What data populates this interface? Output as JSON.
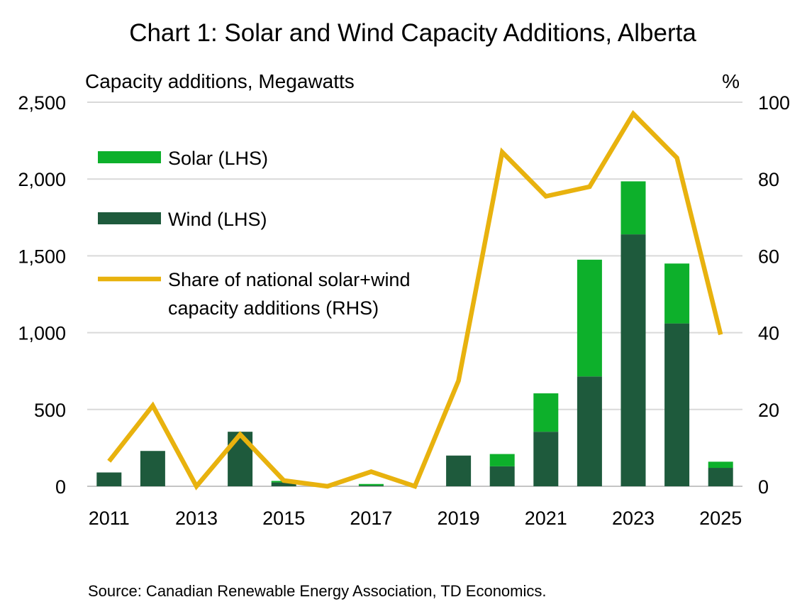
{
  "chart_data": {
    "type": "bar",
    "title": "Chart 1: Solar and Wind Capacity Additions, Alberta",
    "ylabel_left": "Capacity additions, Megawatts",
    "ylabel_right": "%",
    "source": "Source: Canadian Renewable Energy Association, TD Economics.",
    "categories": [
      "2011",
      "2012",
      "2013",
      "2014",
      "2015",
      "2016",
      "2017",
      "2018",
      "2019",
      "2020",
      "2021",
      "2022",
      "2023",
      "2024",
      "2025"
    ],
    "x_tick_labels": [
      "2011",
      "2013",
      "2015",
      "2017",
      "2019",
      "2021",
      "2023",
      "2025"
    ],
    "ylim_left": [
      0,
      2500
    ],
    "y_ticks_left": [
      0,
      500,
      1000,
      1500,
      2000,
      2500
    ],
    "y_tick_labels_left": [
      "0",
      "500",
      "1,000",
      "1,500",
      "2,000",
      "2,500"
    ],
    "ylim_right": [
      0,
      100
    ],
    "y_ticks_right": [
      0,
      20,
      40,
      60,
      80,
      100
    ],
    "y_tick_labels_right": [
      "0",
      "20",
      "40",
      "60",
      "80",
      "100"
    ],
    "grid": true,
    "stacked": true,
    "series": [
      {
        "name": "Wind (LHS)",
        "kind": "bar",
        "axis": "left",
        "color": "#1e5a3c",
        "values": [
          90,
          230,
          0,
          355,
          25,
          0,
          5,
          0,
          200,
          130,
          355,
          715,
          1640,
          1060,
          120
        ]
      },
      {
        "name": "Solar (LHS)",
        "kind": "bar",
        "axis": "left",
        "color": "#0db02b",
        "values": [
          0,
          0,
          0,
          0,
          10,
          0,
          10,
          0,
          0,
          80,
          250,
          760,
          345,
          390,
          40
        ]
      },
      {
        "name": "Share of national solar+wind capacity additions (RHS)",
        "kind": "line",
        "axis": "right",
        "color": "#e8b20e",
        "values": [
          6.5,
          21,
          0,
          13.5,
          1.5,
          0,
          3.8,
          0,
          27.5,
          87,
          75.5,
          78,
          97,
          85.5,
          39.5
        ]
      }
    ],
    "legend_placement": "top-left",
    "legend": [
      {
        "label": "Solar (LHS)",
        "symbol": "bar",
        "color": "#0db02b"
      },
      {
        "label": "Wind (LHS)",
        "symbol": "bar",
        "color": "#1e5a3c"
      },
      {
        "label_lines": [
          "Share of national solar+wind",
          "capacity additions (RHS)"
        ],
        "symbol": "line",
        "color": "#e8b20e"
      }
    ]
  }
}
